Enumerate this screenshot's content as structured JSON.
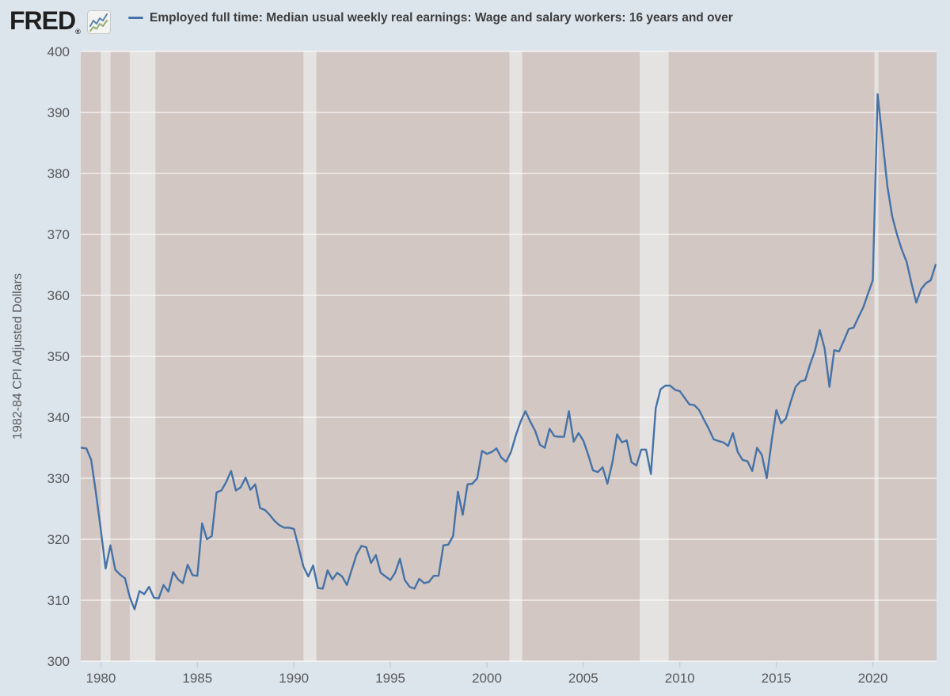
{
  "header": {
    "logo_text": "FRED",
    "logo_registered": "®",
    "logo_icon": "fred-sparkline-icon",
    "legend_series_label": "Employed full time: Median usual weekly real earnings: Wage and salary workers: 16 years and over"
  },
  "colors": {
    "page_bg": "#dde5ec",
    "plot_bg": "#d2c7c3",
    "recession_band": "#e5e3e1",
    "gridline": "rgba(255,255,255,0.5)",
    "line": "#4572a7",
    "tick_mark": "#c6d0d9",
    "tick_text": "#58595b",
    "legend_text": "#3d3d3d",
    "logo": "#1f1f1f"
  },
  "chart_data": {
    "type": "line",
    "title": "Employed full time: Median usual weekly real earnings: Wage and salary workers: 16 years and over",
    "xlabel": "",
    "ylabel": "1982-84 CPI Adjusted Dollars",
    "ylim": [
      300,
      400
    ],
    "xlim": [
      1978.96,
      2023.3
    ],
    "grid": "horizontal-only",
    "legend_position": "top-header",
    "x_tick_values": [
      1980,
      1985,
      1990,
      1995,
      2000,
      2005,
      2010,
      2015,
      2020
    ],
    "x_tick_labels": [
      "1980",
      "1985",
      "1990",
      "1995",
      "2000",
      "2005",
      "2010",
      "2015",
      "2020"
    ],
    "y_tick_values": [
      300,
      310,
      320,
      330,
      340,
      350,
      360,
      370,
      380,
      390,
      400
    ],
    "y_tick_labels": [
      "300",
      "310",
      "320",
      "330",
      "340",
      "350",
      "360",
      "370",
      "380",
      "390",
      "400"
    ],
    "recession_bands": [
      [
        1980.0,
        1980.5
      ],
      [
        1981.5,
        1982.83
      ],
      [
        1990.5,
        1991.17
      ],
      [
        2001.17,
        2001.83
      ],
      [
        2007.92,
        2009.42
      ],
      [
        2020.08,
        2020.29
      ]
    ],
    "series": [
      {
        "name": "Employed full time: Median usual weekly real earnings: Wage and salary workers: 16 years and over",
        "color": "#4572a7",
        "frequency": "quarterly",
        "x_start": 1979.0,
        "x_step": 0.25,
        "values": [
          335,
          334.9,
          333,
          327.5,
          321.5,
          315.2,
          319,
          315,
          314.2,
          313.6,
          310.5,
          308.5,
          311.5,
          311,
          312.2,
          310.4,
          310.3,
          312.5,
          311.4,
          314.6,
          313.4,
          312.8,
          315.8,
          314.1,
          314,
          322.6,
          320,
          320.5,
          327.7,
          328,
          329.4,
          331.2,
          328,
          328.5,
          330.1,
          328.1,
          329,
          325.1,
          324.8,
          324,
          323,
          322.3,
          321.9,
          321.9,
          321.7,
          318.7,
          315.5,
          313.9,
          315.7,
          312,
          311.9,
          314.9,
          313.4,
          314.5,
          313.9,
          312.5,
          315,
          317.5,
          318.9,
          318.7,
          316.1,
          317.4,
          314.5,
          313.9,
          313.3,
          314.5,
          316.8,
          313.3,
          312.2,
          311.9,
          313.5,
          312.8,
          313,
          314,
          314,
          319,
          319.1,
          320.5,
          327.8,
          324,
          329,
          329.1,
          330,
          334.5,
          334,
          334.3,
          334.9,
          333.4,
          332.7,
          334.3,
          337,
          339.3,
          341,
          339.3,
          337.8,
          335.5,
          335,
          338.1,
          336.9,
          336.8,
          336.8,
          341,
          336,
          337.4,
          336.2,
          333.9,
          331.3,
          331,
          331.8,
          329.1,
          332.5,
          337.2,
          335.9,
          336.2,
          332.6,
          332.1,
          334.7,
          334.7,
          330.7,
          341.5,
          344.6,
          345.2,
          345.2,
          344.5,
          344.3,
          343.2,
          342.1,
          342,
          341.2,
          339.6,
          338.1,
          336.4,
          336.1,
          335.9,
          335.3,
          337.4,
          334.3,
          333,
          332.8,
          331.2,
          335,
          333.8,
          330,
          336,
          341.2,
          339,
          339.8,
          342.6,
          345,
          345.9,
          346.1,
          348.7,
          350.9,
          354.3,
          351.3,
          345,
          351,
          350.8,
          352.6,
          354.5,
          354.7,
          356.4,
          358,
          360.3,
          362.5,
          393,
          385.5,
          378,
          373,
          370,
          367.5,
          365.5,
          362,
          358.8,
          361,
          362,
          362.5,
          365
        ]
      }
    ]
  }
}
